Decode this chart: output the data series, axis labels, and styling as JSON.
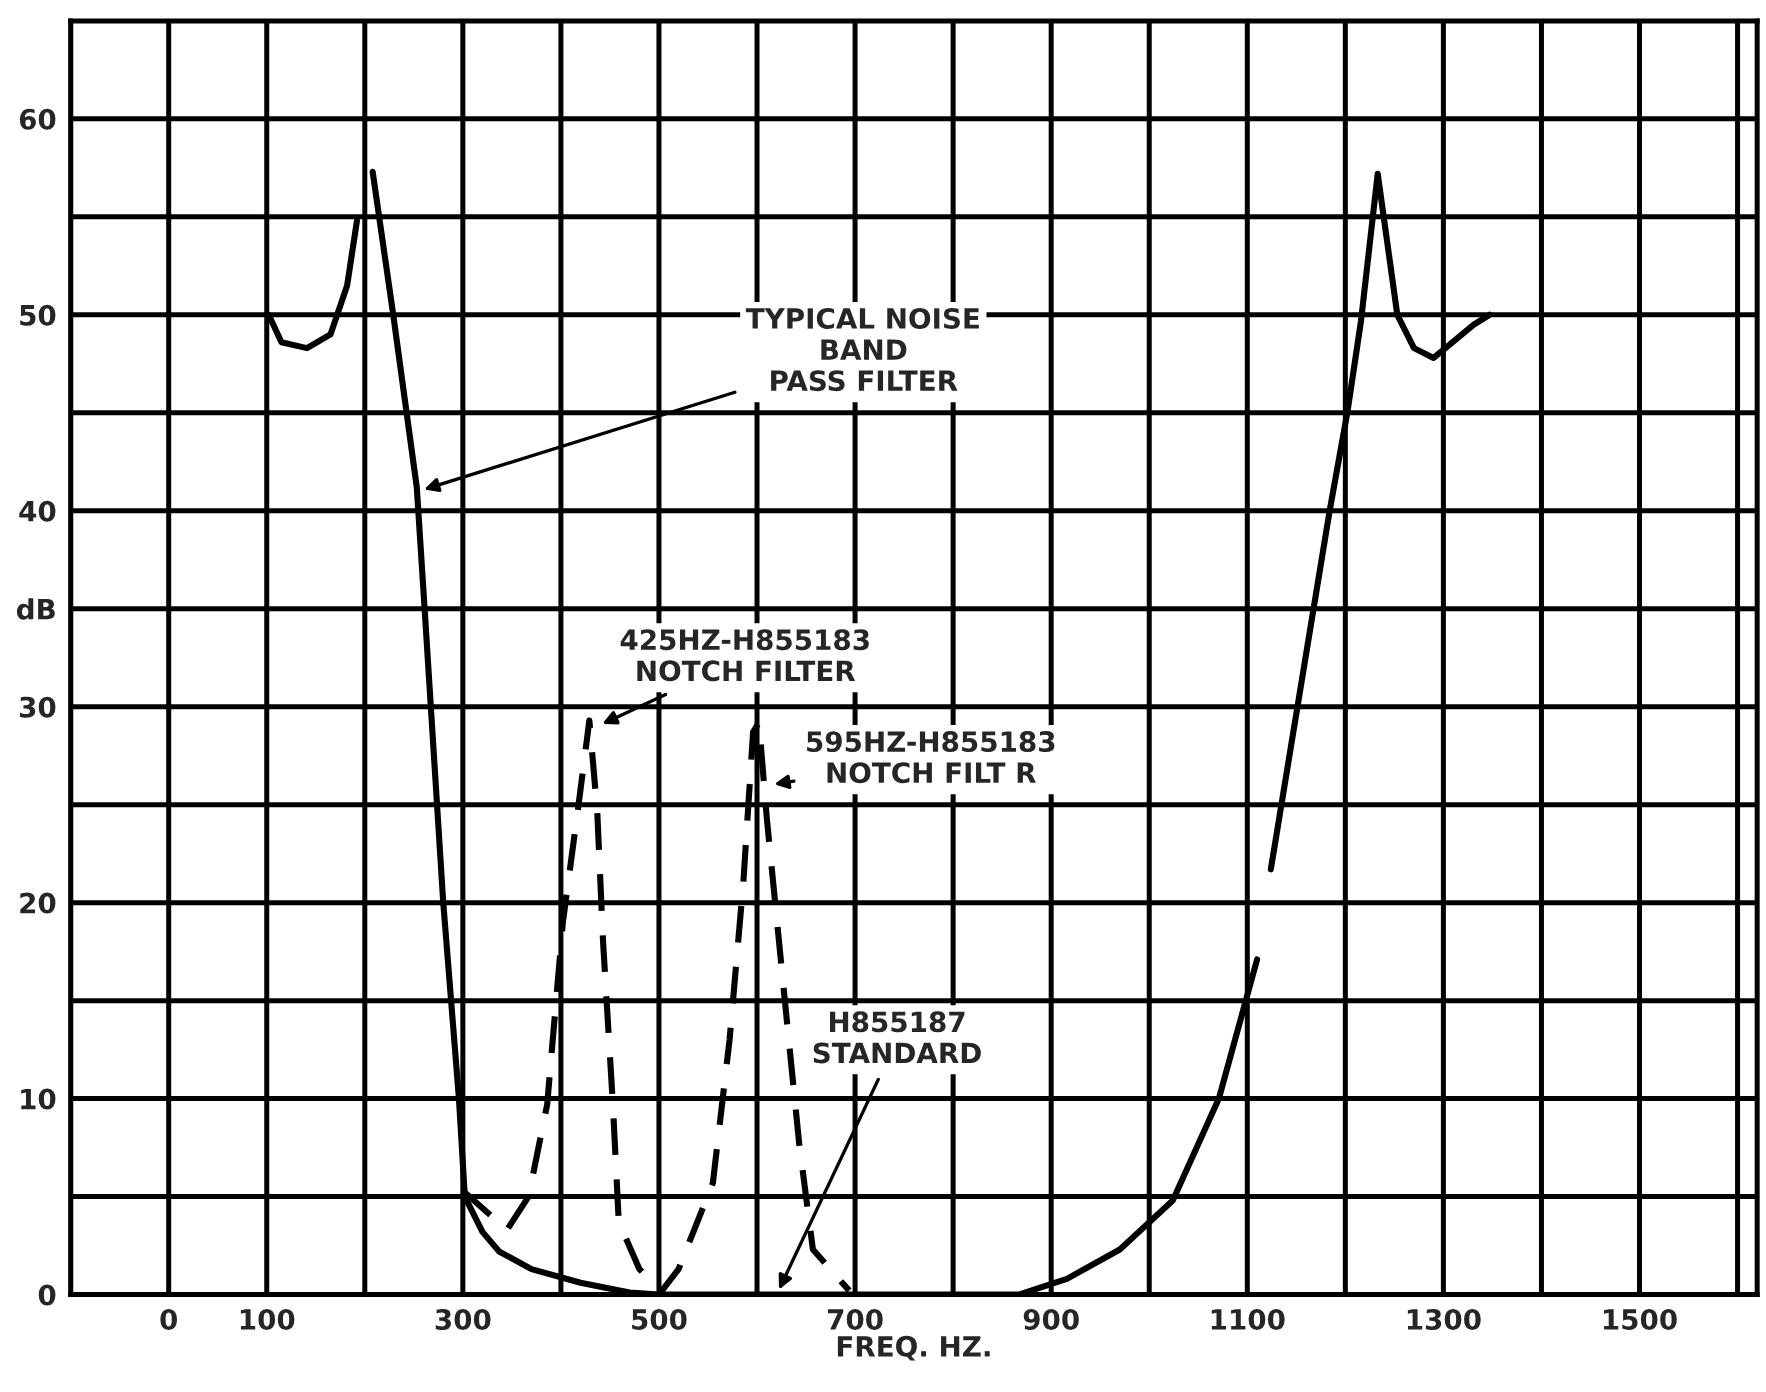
{
  "chart_data": {
    "type": "line",
    "xlabel": "FREQ. HZ.",
    "xlim": [
      -100,
      1620
    ],
    "ylim": [
      0,
      65
    ],
    "xticks": [
      {
        "value": -100,
        "label": null
      },
      0,
      100,
      {
        "value": 200,
        "label": null
      },
      300,
      {
        "value": 400,
        "label": null
      },
      500,
      {
        "value": 600,
        "label": null
      },
      700,
      {
        "value": 800,
        "label": null
      },
      900,
      {
        "value": 1000,
        "label": null
      },
      1100,
      {
        "value": 1200,
        "label": null
      },
      1300,
      {
        "value": 1400,
        "label": null
      },
      1500,
      {
        "value": 1600,
        "label": null
      }
    ],
    "yticks": [
      0,
      {
        "value": 5,
        "label": null
      },
      10,
      {
        "value": 15,
        "label": null
      },
      20,
      {
        "value": 25,
        "label": null
      },
      30,
      {
        "value": 35,
        "label": "dB"
      },
      40,
      {
        "value": 45,
        "label": null
      },
      50,
      {
        "value": 55,
        "label": null
      },
      60
    ],
    "grid": true,
    "marker": "none",
    "series": [
      {
        "color": "#000000",
        "line_style": "solid",
        "x": [
          102,
          115,
          141,
          165,
          182,
          192,
          200,
          208,
          229,
          253,
          261,
          280,
          296,
          302,
          320,
          337,
          370,
          420,
          470,
          500,
          600,
          700,
          800,
          867,
          916,
          970,
          1024,
          1071,
          1110,
          1117,
          1124,
          1161,
          1184,
          1202,
          1216,
          1233,
          1253,
          1270,
          1290,
          1331,
          1347
        ],
        "values": [
          50,
          48.6,
          48.3,
          49,
          51.5,
          54.8,
          null,
          57.3,
          50,
          41.2,
          35,
          20,
          10,
          5,
          3.2,
          2.2,
          1.3,
          0.6,
          0.1,
          0,
          0,
          0,
          0,
          0,
          0.8,
          2.3,
          4.8,
          10,
          17.1,
          null,
          21.7,
          33,
          40,
          45,
          49.7,
          57.2,
          50,
          48.3,
          47.8,
          49.5,
          50
        ]
      },
      {
        "color": "#000000",
        "line_style": "dashed",
        "x": [
          300,
          345,
          367,
          386,
          402,
          418,
          429,
          437,
          443,
          453,
          459,
          480,
          500
        ],
        "values": [
          5.3,
          3.3,
          5,
          9.7,
          19,
          25,
          29.3,
          24.7,
          18,
          9.7,
          3.7,
          1.3,
          0.3
        ]
      },
      {
        "color": "#000000",
        "line_style": "dashed",
        "x": [
          500,
          520,
          555,
          572,
          586,
          596,
          602,
          610,
          627,
          643,
          657,
          694
        ],
        "values": [
          0,
          1.3,
          5.7,
          13,
          21,
          28.7,
          29.2,
          24.3,
          15.7,
          7.7,
          2.3,
          0.2
        ]
      }
    ],
    "annotations": [
      {
        "text": "TYPICAL NOISE\nBAND\nPASS FILTER",
        "x": 255,
        "y": 41
      },
      {
        "text": "425HZ-H855183\nNOTCH FILTER",
        "x": 437,
        "y": 29
      },
      {
        "text": "595HZ-H855183\nNOTCH FILT R",
        "x": 612,
        "y": 26
      },
      {
        "text": "H855187\nSTANDARD",
        "x": 620,
        "y": 0
      }
    ]
  }
}
